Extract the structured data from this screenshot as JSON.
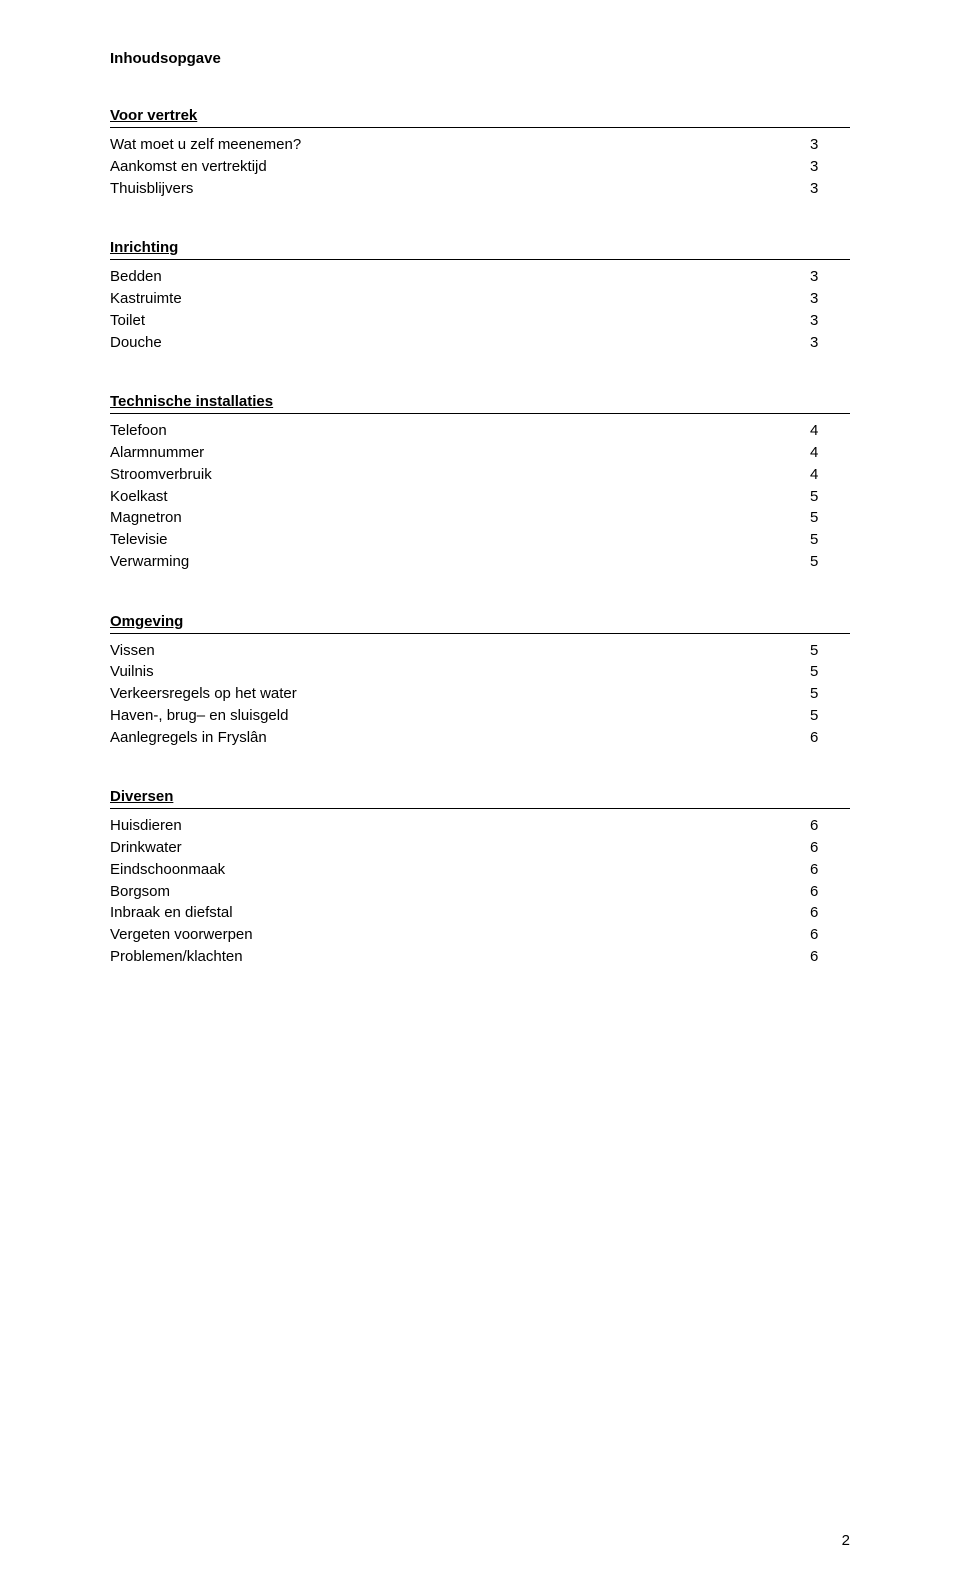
{
  "doc_title": "Inhoudsopgave",
  "sections": {
    "voor_vertrek": {
      "header": "Voor vertrek",
      "items": [
        {
          "label": "Wat moet u zelf meenemen?",
          "page": "3"
        },
        {
          "label": "Aankomst en vertrektijd",
          "page": "3"
        },
        {
          "label": "Thuisblijvers",
          "page": "3"
        }
      ]
    },
    "inrichting": {
      "header": "Inrichting",
      "items": [
        {
          "label": "Bedden",
          "page": "3"
        },
        {
          "label": "Kastruimte",
          "page": "3"
        },
        {
          "label": "Toilet",
          "page": "3"
        },
        {
          "label": "Douche",
          "page": "3"
        }
      ]
    },
    "technische": {
      "header": "Technische installaties",
      "items": [
        {
          "label": "Telefoon",
          "page": "4"
        },
        {
          "label": "Alarmnummer",
          "page": "4"
        },
        {
          "label": "Stroomverbruik",
          "page": "4"
        },
        {
          "label": "Koelkast",
          "page": "5"
        },
        {
          "label": "Magnetron",
          "page": "5"
        },
        {
          "label": "Televisie",
          "page": "5"
        },
        {
          "label": "Verwarming",
          "page": "5"
        }
      ]
    },
    "omgeving": {
      "header": "Omgeving",
      "items": [
        {
          "label": "Vissen",
          "page": "5"
        },
        {
          "label": "Vuilnis",
          "page": "5"
        },
        {
          "label": "Verkeersregels op het water",
          "page": "5"
        },
        {
          "label": "Haven-, brug– en sluisgeld",
          "page": "5"
        },
        {
          "label": "Aanlegregels in Fryslân",
          "page": "6"
        }
      ]
    },
    "diversen": {
      "header": "Diversen",
      "items": [
        {
          "label": "Huisdieren",
          "page": "6"
        },
        {
          "label": "Drinkwater",
          "page": "6"
        },
        {
          "label": "Eindschoonmaak",
          "page": "6"
        },
        {
          "label": "Borgsom",
          "page": "6"
        },
        {
          "label": "Inbraak en diefstal",
          "page": "6"
        },
        {
          "label": "Vergeten voorwerpen",
          "page": "6"
        },
        {
          "label": "Problemen/klachten",
          "page": "6"
        }
      ]
    }
  },
  "page_number": "2"
}
